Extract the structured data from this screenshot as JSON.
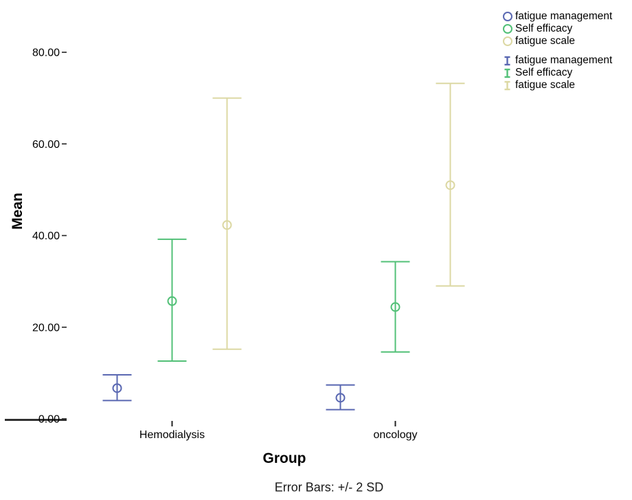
{
  "colors": {
    "fatigue_management": "#5a68b2",
    "self_efficacy": "#52c077",
    "fatigue_scale": "#dcd8a3",
    "axis_box": "#4a4a4a",
    "axis_line": "#303030",
    "text": "#000000"
  },
  "legend": {
    "position": "right",
    "groups": [
      {
        "marker": "circle",
        "items": [
          {
            "label": "fatigue management",
            "color": "#5a68b2"
          },
          {
            "label": "Self efficacy",
            "color": "#52c077"
          },
          {
            "label": "fatigue scale",
            "color": "#dcd8a3"
          }
        ]
      },
      {
        "marker": "ibeam",
        "items": [
          {
            "label": "fatigue management",
            "color": "#5a68b2"
          },
          {
            "label": "Self efficacy",
            "color": "#52c077"
          },
          {
            "label": "fatigue scale",
            "color": "#dcd8a3"
          }
        ]
      }
    ]
  },
  "chart_data": {
    "type": "errorbar",
    "title": "",
    "xlabel": "Group",
    "ylabel": "Mean",
    "caption": "Error Bars: +/- 2 SD",
    "categories": [
      "Hemodialysis",
      "oncology"
    ],
    "y_ticks": [
      0,
      20,
      40,
      60,
      80
    ],
    "y_tick_labels": [
      "0.00",
      "20.00",
      "40.00",
      "60.00",
      "80.00"
    ],
    "ylim": [
      0,
      89.5
    ],
    "grid": false,
    "legend_position": "right",
    "error_bar_definition": "+/- 2 SD",
    "series": [
      {
        "name": "fatigue management",
        "color": "#5a68b2",
        "points": [
          {
            "category": "Hemodialysis",
            "mean": 6.7,
            "low": 4.0,
            "high": 9.6
          },
          {
            "category": "oncology",
            "mean": 4.6,
            "low": 2.0,
            "high": 7.4
          }
        ]
      },
      {
        "name": "Self efficacy",
        "color": "#52c077",
        "points": [
          {
            "category": "Hemodialysis",
            "mean": 25.7,
            "low": 12.6,
            "high": 39.2
          },
          {
            "category": "oncology",
            "mean": 24.4,
            "low": 14.6,
            "high": 34.3
          }
        ]
      },
      {
        "name": "fatigue scale",
        "color": "#dcd8a3",
        "points": [
          {
            "category": "Hemodialysis",
            "mean": 42.3,
            "low": 15.2,
            "high": 70.0
          },
          {
            "category": "oncology",
            "mean": 51.0,
            "low": 29.0,
            "high": 73.2
          }
        ]
      }
    ]
  }
}
